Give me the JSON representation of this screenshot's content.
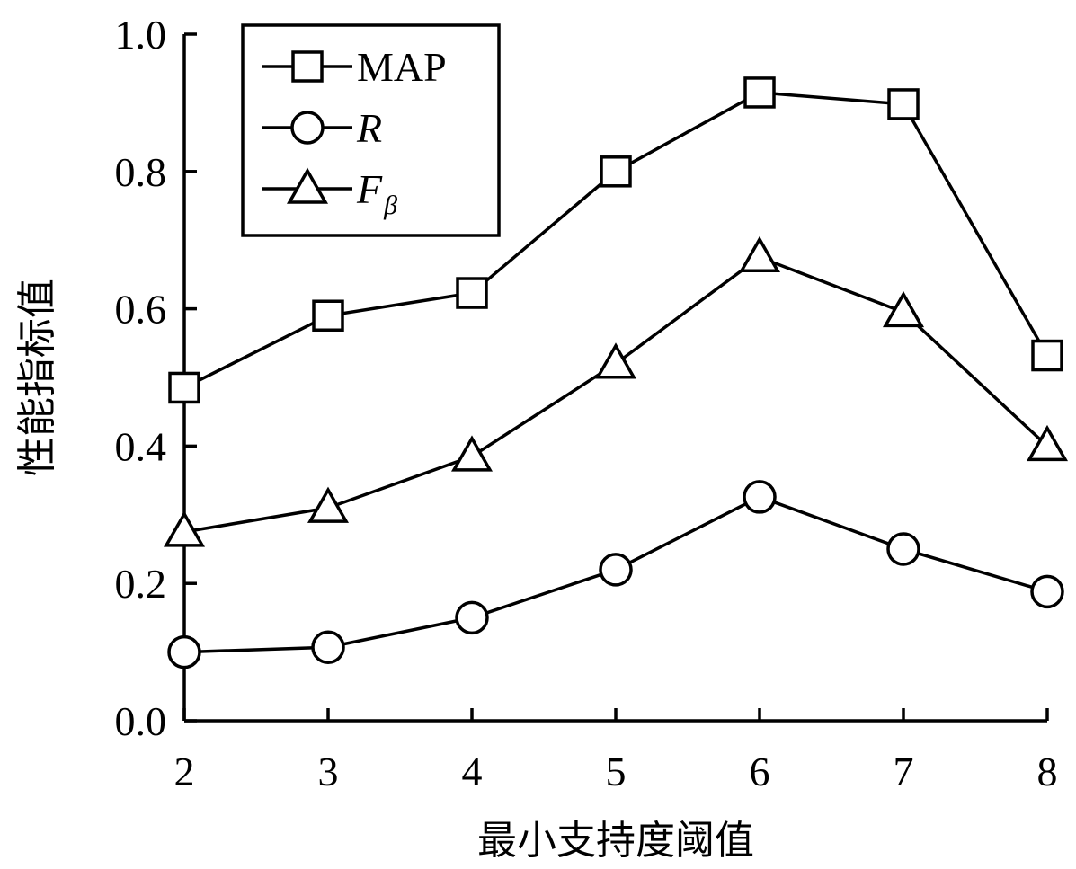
{
  "chart_data": {
    "type": "line",
    "xlabel": "最小支持度阈值",
    "ylabel": "性能指标值",
    "x": [
      2,
      3,
      4,
      5,
      6,
      7,
      8
    ],
    "xticks": [
      "2",
      "3",
      "4",
      "5",
      "6",
      "7",
      "8"
    ],
    "ylim": [
      0.0,
      1.0
    ],
    "yticks": [
      "0.0",
      "0.2",
      "0.4",
      "0.6",
      "0.8",
      "1.0"
    ],
    "grid": false,
    "legend_position": "top-left",
    "series": [
      {
        "name": "MAP",
        "name_sub": "",
        "italic": false,
        "marker": "square",
        "values": [
          0.485,
          0.59,
          0.623,
          0.8,
          0.915,
          0.898,
          0.532
        ]
      },
      {
        "name": "R",
        "name_sub": "",
        "italic": true,
        "marker": "circle",
        "values": [
          0.1,
          0.107,
          0.15,
          0.22,
          0.326,
          0.25,
          0.188
        ]
      },
      {
        "name": "F",
        "name_sub": "β",
        "italic": true,
        "marker": "triangle",
        "values": [
          0.275,
          0.31,
          0.385,
          0.52,
          0.675,
          0.595,
          0.4
        ]
      }
    ]
  }
}
